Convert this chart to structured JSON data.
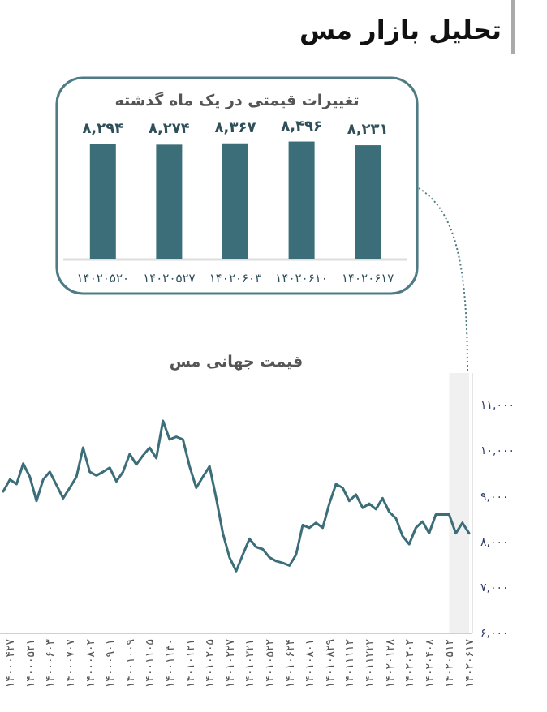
{
  "chart_data": [
    {
      "type": "bar",
      "title": "تحلیل بازار مس",
      "subtitle": "تغییرات قیمتی در یک ماه گذشته",
      "categories": [
        "۱۴۰۲۰۵۲۰",
        "۱۴۰۲۰۵۲۷",
        "۱۴۰۲۰۶۰۳",
        "۱۴۰۲۰۶۱۰",
        "۱۴۰۲۰۶۱۷"
      ],
      "values": [
        8294,
        8274,
        8367,
        8496,
        8231
      ],
      "value_labels": [
        "۸,۲۹۴",
        "۸,۲۷۴",
        "۸,۳۶۷",
        "۸,۴۹۶",
        "۸,۲۳۱"
      ],
      "color": "#3b6e78",
      "tick_labels": "x",
      "grid": false
    },
    {
      "type": "line",
      "title": "قیمت جهانی مس",
      "categories": [
        null,
        "۱۴۰۰۰۴۲۷",
        null,
        null,
        "۱۴۰۰۰۵۲۱",
        null,
        null,
        "۱۴۰۰۰۶۰۳",
        null,
        null,
        "۱۴۰۰۰۷۰۷",
        null,
        null,
        "۱۴۰۰۰۸۰۲",
        null,
        null,
        "۱۴۰۰۰۹۰۱",
        null,
        null,
        "۱۴۰۰۱۰۰۹",
        null,
        null,
        "۱۴۰۰۱۱۰۵",
        null,
        null,
        "۱۴۰۰۱۱۳۰",
        null,
        null,
        "۱۴۰۱۰۱۲۱",
        null,
        null,
        "۱۴۰۱۰۲۰۵",
        null,
        null,
        "۱۴۰۱۰۲۲۷",
        null,
        null,
        "۱۴۰۱۰۳۲۱",
        null,
        null,
        "۱۴۰۱۰۵۲۲",
        null,
        null,
        "۱۴۰۱۰۶۲۴",
        null,
        null,
        "۱۴۰۱۰۸۰۱",
        null,
        null,
        "۱۴۰۱۰۸۲۹",
        null,
        null,
        "۱۴۰۱۱۱۱۲",
        null,
        null,
        "۱۴۰۱۱۲۲۲",
        null,
        null,
        "۱۴۰۲۰۱۲۸",
        null,
        null,
        "۱۴۰۲۰۳۰۲",
        null,
        null,
        "۱۴۰۲۰۴۰۸",
        null,
        null,
        "۱۴۰۲۰۵۱۲",
        null,
        null,
        "۱۴۰۲۰۶۱۷"
      ],
      "series": [
        {
          "color": "#3b6e78",
          "values": [
            9100,
            9360,
            9260,
            9710,
            9420,
            8890,
            9360,
            9530,
            9240,
            8950,
            9180,
            9420,
            10060,
            9530,
            9450,
            9530,
            9620,
            9320,
            9530,
            9920,
            9690,
            9890,
            10060,
            9830,
            10650,
            10240,
            10300,
            10240,
            9650,
            9180,
            9420,
            9650,
            8950,
            8180,
            7650,
            7350,
            7710,
            8060,
            7880,
            7830,
            7650,
            7570,
            7530,
            7470,
            7710,
            8360,
            8300,
            8410,
            8300,
            8830,
            9260,
            9180,
            8890,
            9030,
            8740,
            8830,
            8710,
            8950,
            8650,
            8510,
            8120,
            7940,
            8300,
            8440,
            8180,
            8590,
            8590,
            8590,
            8180,
            8410,
            8180
          ]
        }
      ],
      "ylim": [
        6000,
        11700
      ],
      "yticks": [
        {
          "value": 6000,
          "label": "۶,۰۰۰"
        },
        {
          "value": 7000,
          "label": "۷,۰۰۰"
        },
        {
          "value": 8000,
          "label": "۸,۰۰۰"
        },
        {
          "value": 9000,
          "label": "۹,۰۰۰"
        },
        {
          "value": 10000,
          "label": "۱۰,۰۰۰"
        },
        {
          "value": 11000,
          "label": "۱۱,۰۰۰"
        }
      ],
      "bands": [
        {
          "axis": "x",
          "from": "۱۴۰۲۰۵۱۲",
          "to": "۱۴۰۲۰۶۱۷",
          "color": "#f0f0f0"
        }
      ],
      "grid": false,
      "marker": "none",
      "line_style": "solid"
    }
  ]
}
